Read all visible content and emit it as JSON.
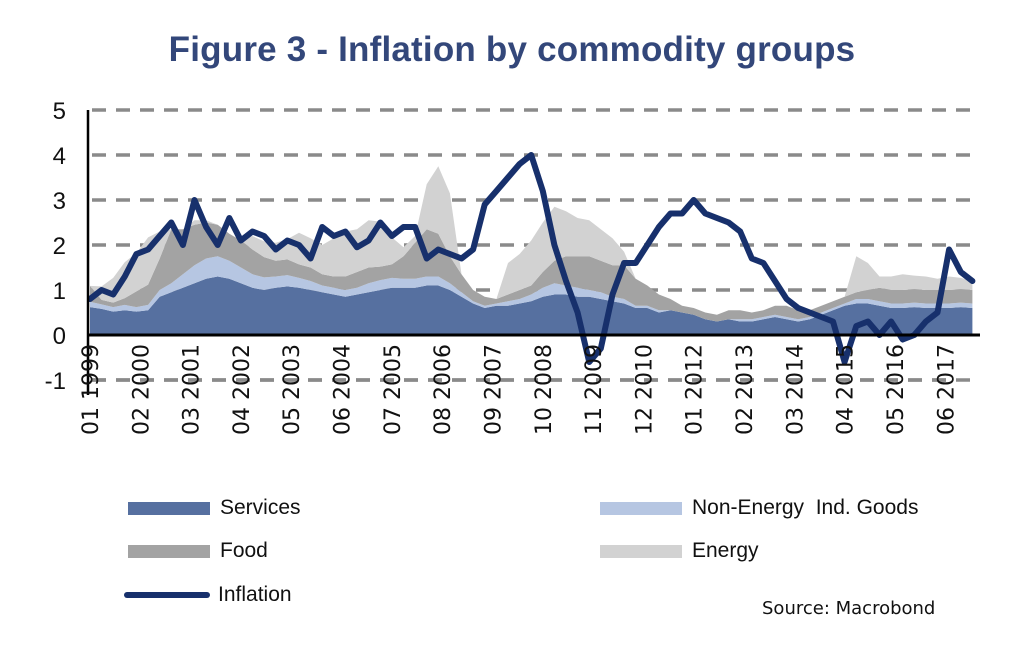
{
  "chart_data": {
    "type": "area",
    "title": "Figure 3 - Inflation by commodity groups",
    "xlabel": "",
    "ylabel": "",
    "ylim": [
      -1,
      5
    ],
    "yticks": [
      5,
      4,
      3,
      2,
      1,
      0,
      -1
    ],
    "grid": true,
    "legend_position": "bottom",
    "x_start": "1999-01",
    "x_step_months": 3,
    "xtick_labels": [
      "01 1999",
      "02 2000",
      "03 2001",
      "04 2002",
      "05 2003",
      "06 2004",
      "07 2005",
      "08 2006",
      "09 2007",
      "10 2008",
      "11 2009",
      "12 2010",
      "01 2012",
      "02 2013",
      "03 2014",
      "04 2015",
      "05 2016",
      "06 2017"
    ],
    "xtick_step_months": 13,
    "series": [
      {
        "name": "Services",
        "kind": "stacked-area",
        "color": "#5670a0",
        "values": [
          0.62,
          0.58,
          0.52,
          0.55,
          0.52,
          0.55,
          0.85,
          0.95,
          1.05,
          1.15,
          1.25,
          1.3,
          1.25,
          1.15,
          1.05,
          1.0,
          1.05,
          1.08,
          1.05,
          1.0,
          0.95,
          0.9,
          0.85,
          0.9,
          0.95,
          1.0,
          1.05,
          1.05,
          1.05,
          1.1,
          1.1,
          1.0,
          0.85,
          0.7,
          0.6,
          0.65,
          0.65,
          0.7,
          0.75,
          0.85,
          0.9,
          0.9,
          0.85,
          0.85,
          0.8,
          0.75,
          0.7,
          0.6,
          0.6,
          0.5,
          0.55,
          0.5,
          0.45,
          0.35,
          0.3,
          0.35,
          0.3,
          0.3,
          0.35,
          0.4,
          0.35,
          0.3,
          0.35,
          0.45,
          0.55,
          0.65,
          0.7,
          0.7,
          0.65,
          0.6,
          0.6,
          0.62,
          0.6,
          0.6,
          0.6,
          0.62,
          0.6
        ],
        "note": "approximate contributions read from chart (percentage points)"
      },
      {
        "name": "Non-Energy Ind. Goods",
        "kind": "stacked-area",
        "color": "#b6c6e2",
        "values": [
          0.12,
          0.1,
          0.1,
          0.12,
          0.1,
          0.12,
          0.15,
          0.2,
          0.3,
          0.4,
          0.45,
          0.45,
          0.4,
          0.35,
          0.3,
          0.28,
          0.25,
          0.25,
          0.22,
          0.2,
          0.15,
          0.15,
          0.15,
          0.15,
          0.2,
          0.22,
          0.22,
          0.2,
          0.2,
          0.2,
          0.2,
          0.15,
          0.1,
          0.05,
          0.05,
          0.05,
          0.1,
          0.1,
          0.15,
          0.2,
          0.25,
          0.2,
          0.2,
          0.15,
          0.15,
          0.1,
          0.1,
          0.05,
          0.05,
          0.05,
          0.0,
          0.0,
          0.0,
          0.0,
          0.0,
          0.0,
          0.05,
          0.05,
          0.05,
          0.05,
          0.05,
          0.05,
          0.05,
          0.05,
          0.05,
          0.05,
          0.1,
          0.1,
          0.1,
          0.1,
          0.1,
          0.1,
          0.1,
          0.1,
          0.1,
          0.1,
          0.1
        ]
      },
      {
        "name": "Food",
        "kind": "stacked-area",
        "color": "#a3a3a3",
        "values": [
          0.35,
          0.1,
          0.1,
          0.15,
          0.35,
          0.45,
          0.7,
          1.2,
          1.0,
          0.9,
          0.8,
          0.7,
          0.6,
          0.6,
          0.55,
          0.45,
          0.35,
          0.35,
          0.3,
          0.3,
          0.25,
          0.25,
          0.3,
          0.35,
          0.35,
          0.3,
          0.3,
          0.5,
          0.8,
          1.05,
          0.95,
          0.6,
          0.4,
          0.25,
          0.2,
          0.1,
          0.15,
          0.2,
          0.2,
          0.35,
          0.5,
          0.65,
          0.7,
          0.75,
          0.7,
          0.7,
          0.75,
          0.6,
          0.45,
          0.35,
          0.25,
          0.15,
          0.15,
          0.15,
          0.15,
          0.2,
          0.2,
          0.15,
          0.15,
          0.2,
          0.25,
          0.2,
          0.15,
          0.15,
          0.15,
          0.15,
          0.15,
          0.2,
          0.3,
          0.3,
          0.3,
          0.3,
          0.3,
          0.3,
          0.3,
          0.3,
          0.3
        ]
      },
      {
        "name": "Energy",
        "kind": "stacked-area",
        "color": "#d2d2d2",
        "values": [
          0.0,
          0.3,
          0.55,
          0.8,
          0.85,
          1.05,
          0.6,
          0.0,
          0.0,
          0.1,
          0.05,
          0.0,
          0.0,
          0.0,
          0.3,
          0.35,
          0.4,
          0.45,
          0.7,
          0.65,
          0.65,
          0.85,
          1.0,
          0.95,
          1.05,
          1.0,
          0.6,
          0.2,
          0.15,
          1.0,
          1.5,
          1.4,
          0.0,
          0.0,
          0.0,
          0.0,
          0.7,
          0.8,
          1.0,
          1.1,
          1.2,
          1.0,
          0.85,
          0.8,
          0.7,
          0.6,
          0.3,
          0.0,
          0.0,
          0.0,
          0.0,
          0.0,
          0.0,
          0.0,
          0.0,
          0.0,
          0.0,
          0.0,
          0.0,
          0.0,
          0.0,
          0.0,
          0.0,
          0.0,
          0.0,
          0.0,
          0.8,
          0.6,
          0.25,
          0.3,
          0.35,
          0.3,
          0.3,
          0.25,
          0.3,
          0.25,
          0.2
        ]
      },
      {
        "name": "Inflation",
        "kind": "line",
        "color": "#17306c",
        "values": [
          0.8,
          1.0,
          0.9,
          1.3,
          1.8,
          1.9,
          2.2,
          2.5,
          2.0,
          3.0,
          2.4,
          2.0,
          2.6,
          2.1,
          2.3,
          2.2,
          1.9,
          2.1,
          2.0,
          1.7,
          2.4,
          2.2,
          2.3,
          1.95,
          2.1,
          2.5,
          2.2,
          2.4,
          2.4,
          1.7,
          1.9,
          1.8,
          1.7,
          1.9,
          2.9,
          3.2,
          3.5,
          3.8,
          4.0,
          3.2,
          2.0,
          1.2,
          0.5,
          -0.6,
          -0.3,
          0.9,
          1.6,
          1.6,
          2.0,
          2.4,
          2.7,
          2.7,
          3.0,
          2.7,
          2.6,
          2.5,
          2.3,
          1.7,
          1.6,
          1.2,
          0.8,
          0.6,
          0.5,
          0.4,
          0.3,
          -0.6,
          0.2,
          0.3,
          0.0,
          0.3,
          -0.1,
          0.0,
          0.3,
          0.5,
          1.9,
          1.4,
          1.2
        ]
      }
    ],
    "legend": [
      {
        "label": "Services",
        "kind": "area",
        "color": "#5670a0"
      },
      {
        "label": "Non-Energy  Ind. Goods",
        "kind": "area",
        "color": "#b6c6e2"
      },
      {
        "label": "Food",
        "kind": "area",
        "color": "#a3a3a3"
      },
      {
        "label": "Energy",
        "kind": "area",
        "color": "#d2d2d2"
      },
      {
        "label": "Inflation",
        "kind": "line",
        "color": "#17306c"
      }
    ],
    "source": "Source: Macrobond"
  }
}
